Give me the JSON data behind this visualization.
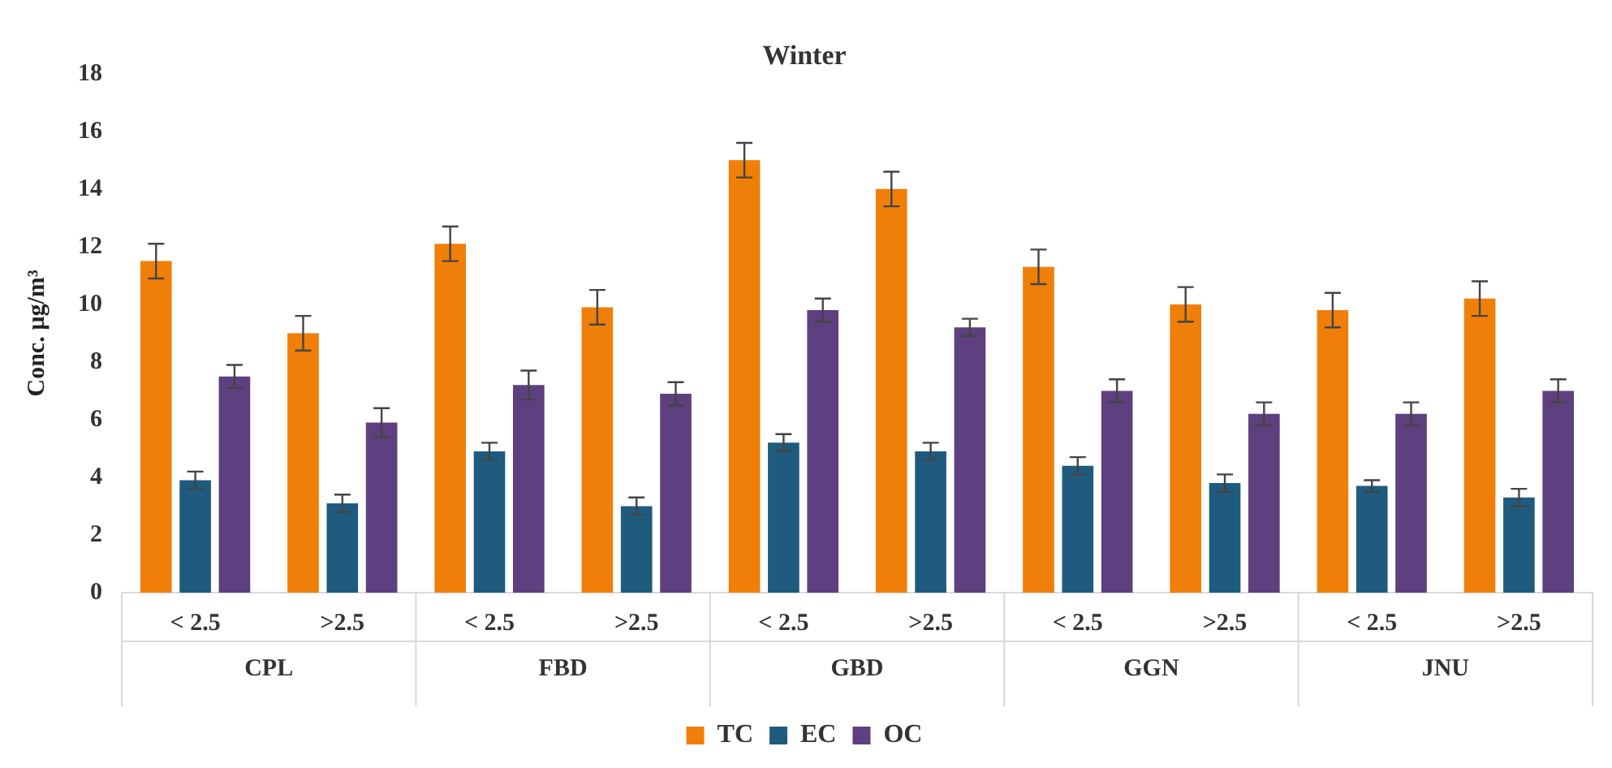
{
  "chart_data": {
    "type": "bar",
    "title": "Winter",
    "ylabel": "Conc. µg/m³",
    "categories": [
      "< 2.5",
      ">2.5",
      "< 2.5",
      ">2.5",
      "< 2.5",
      ">2.5",
      "< 2.5",
      ">2.5",
      "< 2.5",
      ">2.5"
    ],
    "annotations": [
      "CPL",
      "FBD",
      "GBD",
      "GGN",
      "JNU"
    ],
    "series": [
      {
        "name": "TC",
        "color": "#f07f09",
        "values": [
          11.5,
          9.0,
          12.1,
          9.9,
          15.0,
          14.0,
          11.3,
          10.0,
          9.8,
          10.2
        ],
        "errors": [
          0.6,
          0.6,
          0.6,
          0.6,
          0.6,
          0.6,
          0.6,
          0.6,
          0.6,
          0.6
        ]
      },
      {
        "name": "EC",
        "color": "#1f5b7e",
        "values": [
          3.9,
          3.1,
          4.9,
          3.0,
          5.2,
          4.9,
          4.4,
          3.8,
          3.7,
          3.3
        ],
        "errors": [
          0.3,
          0.3,
          0.3,
          0.3,
          0.3,
          0.3,
          0.3,
          0.3,
          0.2,
          0.3
        ]
      },
      {
        "name": "OC",
        "color": "#5e3f7f",
        "values": [
          7.5,
          5.9,
          7.2,
          6.9,
          9.8,
          9.2,
          7.0,
          6.2,
          6.2,
          7.0
        ],
        "errors": [
          0.4,
          0.5,
          0.5,
          0.4,
          0.4,
          0.3,
          0.4,
          0.4,
          0.4,
          0.4
        ]
      }
    ],
    "ylim": [
      0,
      18
    ],
    "yticks": [
      0,
      2,
      4,
      6,
      8,
      10,
      12,
      14,
      16,
      18
    ],
    "grid": false,
    "legend": "bottom"
  }
}
